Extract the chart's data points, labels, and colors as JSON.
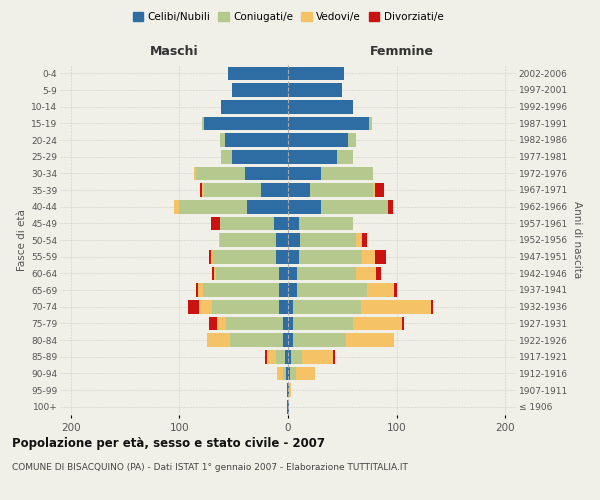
{
  "age_groups": [
    "100+",
    "95-99",
    "90-94",
    "85-89",
    "80-84",
    "75-79",
    "70-74",
    "65-69",
    "60-64",
    "55-59",
    "50-54",
    "45-49",
    "40-44",
    "35-39",
    "30-34",
    "25-29",
    "20-24",
    "15-19",
    "10-14",
    "5-9",
    "0-4"
  ],
  "birth_years": [
    "≤ 1906",
    "1907-1911",
    "1912-1916",
    "1917-1921",
    "1922-1926",
    "1927-1931",
    "1932-1936",
    "1937-1941",
    "1942-1946",
    "1947-1951",
    "1952-1956",
    "1957-1961",
    "1962-1966",
    "1967-1971",
    "1972-1976",
    "1977-1981",
    "1982-1986",
    "1987-1991",
    "1992-1996",
    "1997-2001",
    "2002-2006"
  ],
  "colors": {
    "celibi": "#2e6da4",
    "coniugati": "#b5c98e",
    "vedovi": "#f5c265",
    "divorziati": "#cc1111"
  },
  "m_cel": [
    1,
    1,
    2,
    3,
    5,
    5,
    8,
    8,
    8,
    11,
    11,
    13,
    38,
    25,
    40,
    52,
    58,
    77,
    62,
    52,
    55
  ],
  "m_con": [
    0,
    0,
    3,
    8,
    48,
    52,
    62,
    70,
    58,
    58,
    52,
    50,
    62,
    52,
    45,
    10,
    5,
    2,
    0,
    0,
    0
  ],
  "m_ved": [
    0,
    0,
    5,
    8,
    22,
    8,
    12,
    5,
    2,
    2,
    1,
    0,
    5,
    2,
    2,
    0,
    0,
    0,
    0,
    0,
    0
  ],
  "m_div": [
    0,
    0,
    0,
    2,
    0,
    8,
    10,
    2,
    2,
    2,
    0,
    8,
    0,
    2,
    0,
    0,
    0,
    0,
    0,
    0,
    0
  ],
  "f_cel": [
    1,
    1,
    2,
    3,
    5,
    5,
    5,
    8,
    8,
    10,
    11,
    10,
    30,
    20,
    30,
    45,
    55,
    75,
    60,
    50,
    52
  ],
  "f_con": [
    0,
    0,
    5,
    10,
    48,
    55,
    62,
    65,
    55,
    58,
    52,
    50,
    62,
    58,
    48,
    15,
    8,
    2,
    0,
    0,
    0
  ],
  "f_ved": [
    0,
    2,
    18,
    28,
    45,
    45,
    65,
    25,
    18,
    12,
    5,
    0,
    0,
    2,
    0,
    0,
    0,
    0,
    0,
    0,
    0
  ],
  "f_div": [
    0,
    0,
    0,
    2,
    0,
    2,
    2,
    2,
    5,
    10,
    5,
    0,
    5,
    8,
    0,
    0,
    0,
    0,
    0,
    0,
    0
  ],
  "xlim": 210,
  "title": "Popolazione per età, sesso e stato civile - 2007",
  "subtitle": "COMUNE DI BISACQUINO (PA) - Dati ISTAT 1° gennaio 2007 - Elaborazione TUTTITALIA.IT",
  "xlabel_left": "Maschi",
  "xlabel_right": "Femmine",
  "ylabel_left": "Fasce di età",
  "ylabel_right": "Anni di nascita",
  "legend_labels": [
    "Celibi/Nubili",
    "Coniugati/e",
    "Vedovi/e",
    "Divorziati/e"
  ],
  "bg_color": "#f0f0e8"
}
